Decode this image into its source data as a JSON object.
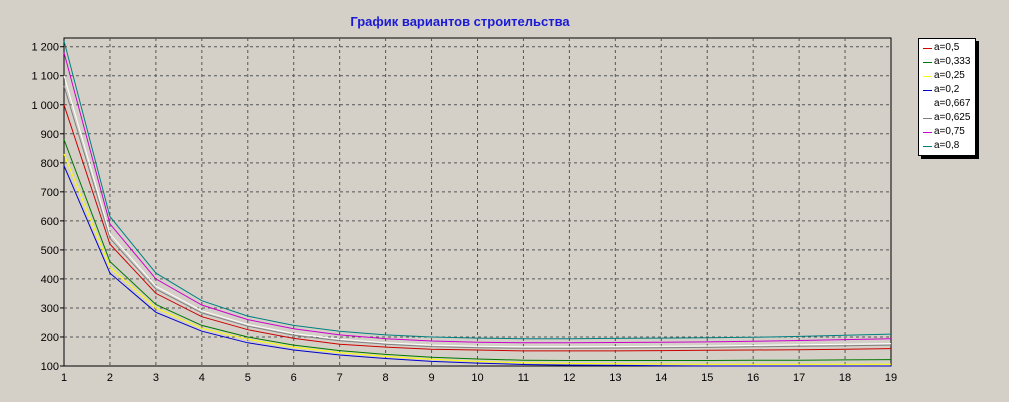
{
  "chart_data": {
    "type": "line",
    "title": "График вариантов строительства",
    "xlabel": "",
    "ylabel": "",
    "x": [
      1,
      2,
      3,
      4,
      5,
      6,
      7,
      8,
      9,
      10,
      11,
      12,
      13,
      14,
      15,
      16,
      17,
      18,
      19
    ],
    "x_ticks": [
      "1",
      "2",
      "3",
      "4",
      "5",
      "6",
      "7",
      "8",
      "9",
      "10",
      "11",
      "12",
      "13",
      "14",
      "15",
      "16",
      "17",
      "18",
      "19"
    ],
    "xlim": [
      1,
      19
    ],
    "ylim": [
      100,
      1230
    ],
    "y_ticks": [
      100,
      200,
      300,
      400,
      500,
      600,
      700,
      800,
      900,
      1000,
      1100,
      1200
    ],
    "y_tick_labels": [
      "100",
      "200",
      "300",
      "400",
      "500",
      "600",
      "700",
      "800",
      "900",
      "1 000",
      "1 100",
      "1 200"
    ],
    "grid": true,
    "legend_position": "right",
    "background_color": "#d4d0c8",
    "title_color": "#1a1ad6",
    "series": [
      {
        "name": "a=0,5",
        "color": "#cc0000",
        "values": [
          1000,
          520,
          350,
          270,
          225,
          195,
          175,
          165,
          158,
          155,
          152,
          152,
          152,
          153,
          154,
          155,
          156,
          158,
          160
        ]
      },
      {
        "name": "a=0,333",
        "color": "#007700",
        "values": [
          880,
          460,
          312,
          240,
          200,
          172,
          153,
          140,
          130,
          124,
          120,
          119,
          119,
          119,
          119,
          120,
          120,
          121,
          122
        ]
      },
      {
        "name": "a=0,25",
        "color": "#ffff00",
        "values": [
          830,
          440,
          300,
          230,
          192,
          165,
          146,
          133,
          123,
          116,
          111,
          109,
          108,
          107,
          106,
          106,
          106,
          106,
          106
        ]
      },
      {
        "name": "a=0,2",
        "color": "#0000cc",
        "values": [
          790,
          420,
          285,
          220,
          180,
          155,
          138,
          126,
          116,
          110,
          105,
          103,
          102,
          101,
          100,
          100,
          100,
          100,
          100
        ]
      },
      {
        "name": "a=0,667",
        "color": "#ffffff",
        "values": [
          1100,
          555,
          375,
          290,
          243,
          212,
          192,
          180,
          172,
          168,
          166,
          166,
          167,
          168,
          169,
          171,
          173,
          175,
          177
        ]
      },
      {
        "name": "a=0,625",
        "color": "#808080",
        "values": [
          1065,
          540,
          365,
          283,
          237,
          206,
          187,
          175,
          167,
          163,
          161,
          161,
          162,
          163,
          164,
          166,
          168,
          170,
          172
        ]
      },
      {
        "name": "a=0,75",
        "color": "#cc00cc",
        "values": [
          1180,
          590,
          400,
          310,
          260,
          228,
          207,
          194,
          186,
          182,
          180,
          180,
          181,
          182,
          183,
          185,
          188,
          191,
          194
        ]
      },
      {
        "name": "a=0,8",
        "color": "#008080",
        "values": [
          1220,
          615,
          420,
          325,
          272,
          240,
          220,
          207,
          200,
          196,
          194,
          194,
          195,
          196,
          197,
          199,
          202,
          206,
          210
        ]
      }
    ]
  }
}
